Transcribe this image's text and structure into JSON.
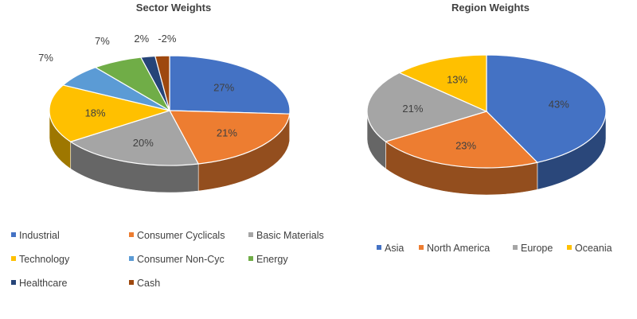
{
  "chart_data": [
    {
      "type": "pie",
      "title": "Sector Weights",
      "three_d": true,
      "legend_position": "bottom",
      "categories": [
        "Industrial",
        "Consumer Cyclicals",
        "Basic Materials",
        "Technology",
        "Consumer Non-Cyc",
        "Energy",
        "Healthcare",
        "Cash"
      ],
      "values": [
        27,
        21,
        20,
        18,
        7,
        7,
        2,
        -2
      ],
      "labels": [
        "27%",
        "21%",
        "20%",
        "18%",
        "7%",
        "7%",
        "2%",
        "-2%"
      ],
      "colors": [
        "#4472c4",
        "#ed7d31",
        "#a5a5a5",
        "#ffc000",
        "#5b9bd5",
        "#70ad47",
        "#264478",
        "#9e480e"
      ]
    },
    {
      "type": "pie",
      "title": "Region Weights",
      "three_d": true,
      "legend_position": "bottom",
      "categories": [
        "Asia",
        "North America",
        "Europe",
        "Oceania"
      ],
      "values": [
        43,
        23,
        21,
        13
      ],
      "labels": [
        "43%",
        "23%",
        "21%",
        "13%"
      ],
      "colors": [
        "#4472c4",
        "#ed7d31",
        "#a5a5a5",
        "#ffc000"
      ]
    }
  ]
}
